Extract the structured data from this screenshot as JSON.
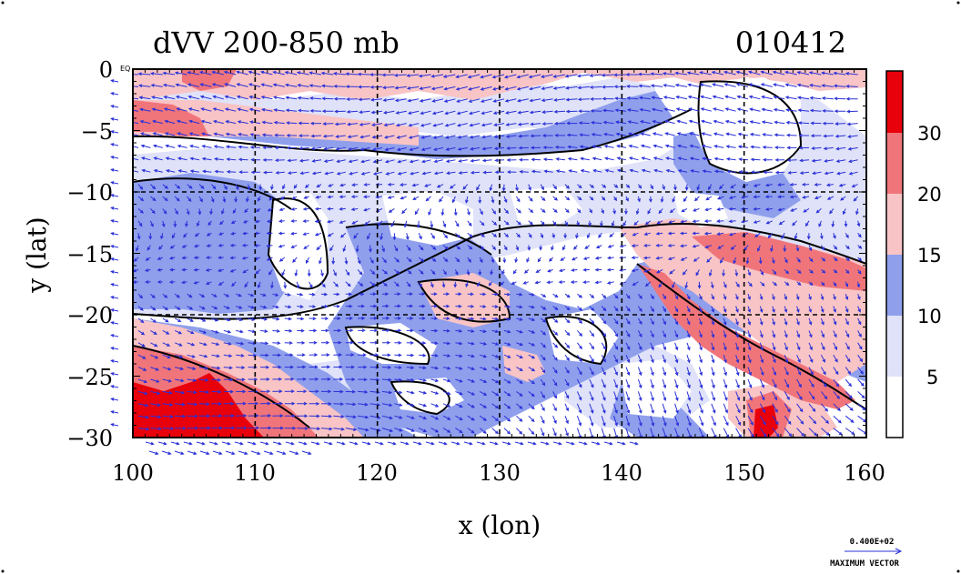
{
  "header": {
    "title": "dVV 200-850 mb",
    "date_code": "010412"
  },
  "axes": {
    "x_label": "x (lon)",
    "y_label": "y (lat)",
    "x_ticks": [
      "100",
      "110",
      "120",
      "130",
      "140",
      "150",
      "160"
    ],
    "y_ticks": [
      "0",
      "−5",
      "−10",
      "−15",
      "−20",
      "−25",
      "−30"
    ],
    "corner_tag": "EQ"
  },
  "colorbar": {
    "labels": [
      "30",
      "20",
      "15",
      "10",
      "5"
    ],
    "colors": [
      "#e8000b",
      "#f0757b",
      "#f8c4c5",
      "#8f9fec",
      "#dfe2f8",
      "#ffffff"
    ]
  },
  "vector_key": {
    "value": "0.400E+02",
    "label": "MAXIMUM VECTOR"
  },
  "colors": {
    "red_max": "#e8000b",
    "red_mid": "#f0757b",
    "red_light": "#f8c4c5",
    "blue_mid": "#8f9fec",
    "blue_light": "#dfe2f8",
    "background": "#ffffff",
    "vector": "#2a30d8",
    "contour": "#000000"
  },
  "grid": {
    "lines": "dashed"
  }
}
